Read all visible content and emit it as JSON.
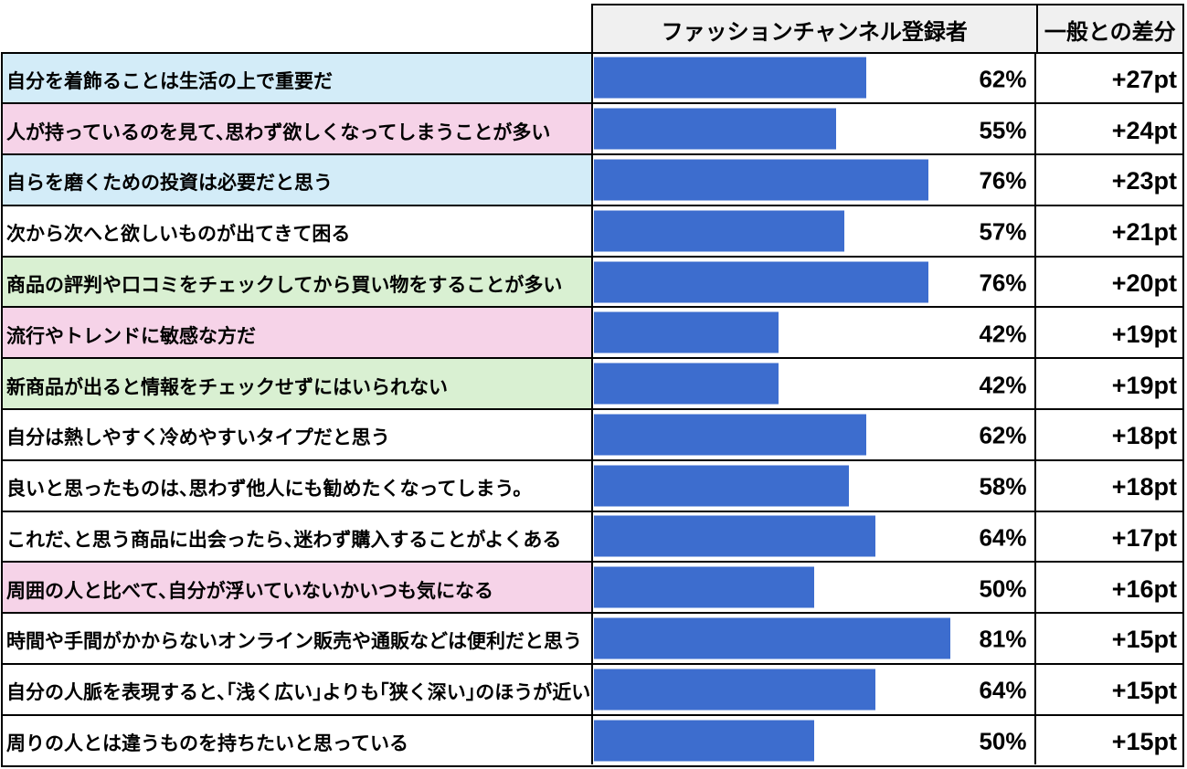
{
  "chart_data": {
    "type": "bar",
    "title": "",
    "columns": {
      "bar_header": "ファッションチャンネル登録者",
      "diff_header": "一般との差分"
    },
    "xlim": [
      0,
      100
    ],
    "bar_color": "#3d6dce",
    "highlight_colors": {
      "blue": "#d3ecf8",
      "pink": "#f6d3e8",
      "green": "#d9f0d2",
      "none": "#ffffff"
    },
    "rows": [
      {
        "label": "自分を着飾ることは生活の上で重要だ",
        "value": 62,
        "value_label": "62%",
        "diff_label": "+27pt",
        "highlight": "blue"
      },
      {
        "label": "人が持っているのを見て、思わず欲しくなってしまうことが多い",
        "value": 55,
        "value_label": "55%",
        "diff_label": "+24pt",
        "highlight": "pink"
      },
      {
        "label": "自らを磨くための投資は必要だと思う",
        "value": 76,
        "value_label": "76%",
        "diff_label": "+23pt",
        "highlight": "blue"
      },
      {
        "label": "次から次へと欲しいものが出てきて困る",
        "value": 57,
        "value_label": "57%",
        "diff_label": "+21pt",
        "highlight": "none"
      },
      {
        "label": "商品の評判や口コミをチェックしてから買い物をすることが多い",
        "value": 76,
        "value_label": "76%",
        "diff_label": "+20pt",
        "highlight": "green"
      },
      {
        "label": "流行やトレンドに敏感な方だ",
        "value": 42,
        "value_label": "42%",
        "diff_label": "+19pt",
        "highlight": "pink"
      },
      {
        "label": "新商品が出ると情報をチェックせずにはいられない",
        "value": 42,
        "value_label": "42%",
        "diff_label": "+19pt",
        "highlight": "green"
      },
      {
        "label": "自分は熱しやすく冷めやすいタイプだと思う",
        "value": 62,
        "value_label": "62%",
        "diff_label": "+18pt",
        "highlight": "none"
      },
      {
        "label": "良いと思ったものは、思わず他人にも勧めたくなってしまう。",
        "value": 58,
        "value_label": "58%",
        "diff_label": "+18pt",
        "highlight": "none"
      },
      {
        "label": "これだ、と思う商品に出会ったら、迷わず購入することがよくある",
        "value": 64,
        "value_label": "64%",
        "diff_label": "+17pt",
        "highlight": "none"
      },
      {
        "label": "周囲の人と比べて、自分が浮いていないかいつも気になる",
        "value": 50,
        "value_label": "50%",
        "diff_label": "+16pt",
        "highlight": "pink"
      },
      {
        "label": "時間や手間がかからないオンライン販売や通販などは便利だと思う",
        "value": 81,
        "value_label": "81%",
        "diff_label": "+15pt",
        "highlight": "none"
      },
      {
        "label": "自分の人脈を表現すると、「浅く広い」よりも「狭く深い」のほうが近い",
        "value": 64,
        "value_label": "64%",
        "diff_label": "+15pt",
        "highlight": "none"
      },
      {
        "label": "周りの人とは違うものを持ちたいと思っている",
        "value": 50,
        "value_label": "50%",
        "diff_label": "+15pt",
        "highlight": "none"
      }
    ]
  }
}
